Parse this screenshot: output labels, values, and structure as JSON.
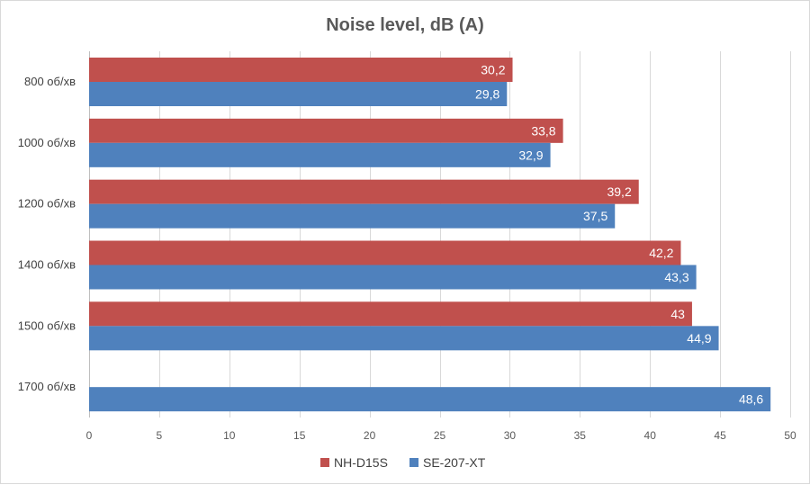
{
  "chart_data": {
    "type": "bar",
    "orientation": "horizontal",
    "title": "Noise level, dB (A)",
    "xlabel": "",
    "ylabel": "",
    "categories": [
      "800 об/хв",
      "1000 об/хв",
      "1200 об/хв",
      "1400 об/хв",
      "1500 об/хв",
      "1700 об/хв"
    ],
    "series": [
      {
        "name": "NH-D15S",
        "color": "#c0504d",
        "values": [
          30.2,
          33.8,
          39.2,
          42.2,
          43,
          null
        ],
        "labels": [
          "30,2",
          "33,8",
          "39,2",
          "42,2",
          "43",
          ""
        ]
      },
      {
        "name": "SE-207-XT",
        "color": "#4f81bd",
        "values": [
          29.8,
          32.9,
          37.5,
          43.3,
          44.9,
          48.6
        ],
        "labels": [
          "29,8",
          "32,9",
          "37,5",
          "43,3",
          "44,9",
          "48,6"
        ]
      }
    ],
    "xlim": [
      0,
      50
    ],
    "xticks": [
      0,
      5,
      10,
      15,
      20,
      25,
      30,
      35,
      40,
      45,
      50
    ],
    "grid": true,
    "legend": "bottom"
  }
}
